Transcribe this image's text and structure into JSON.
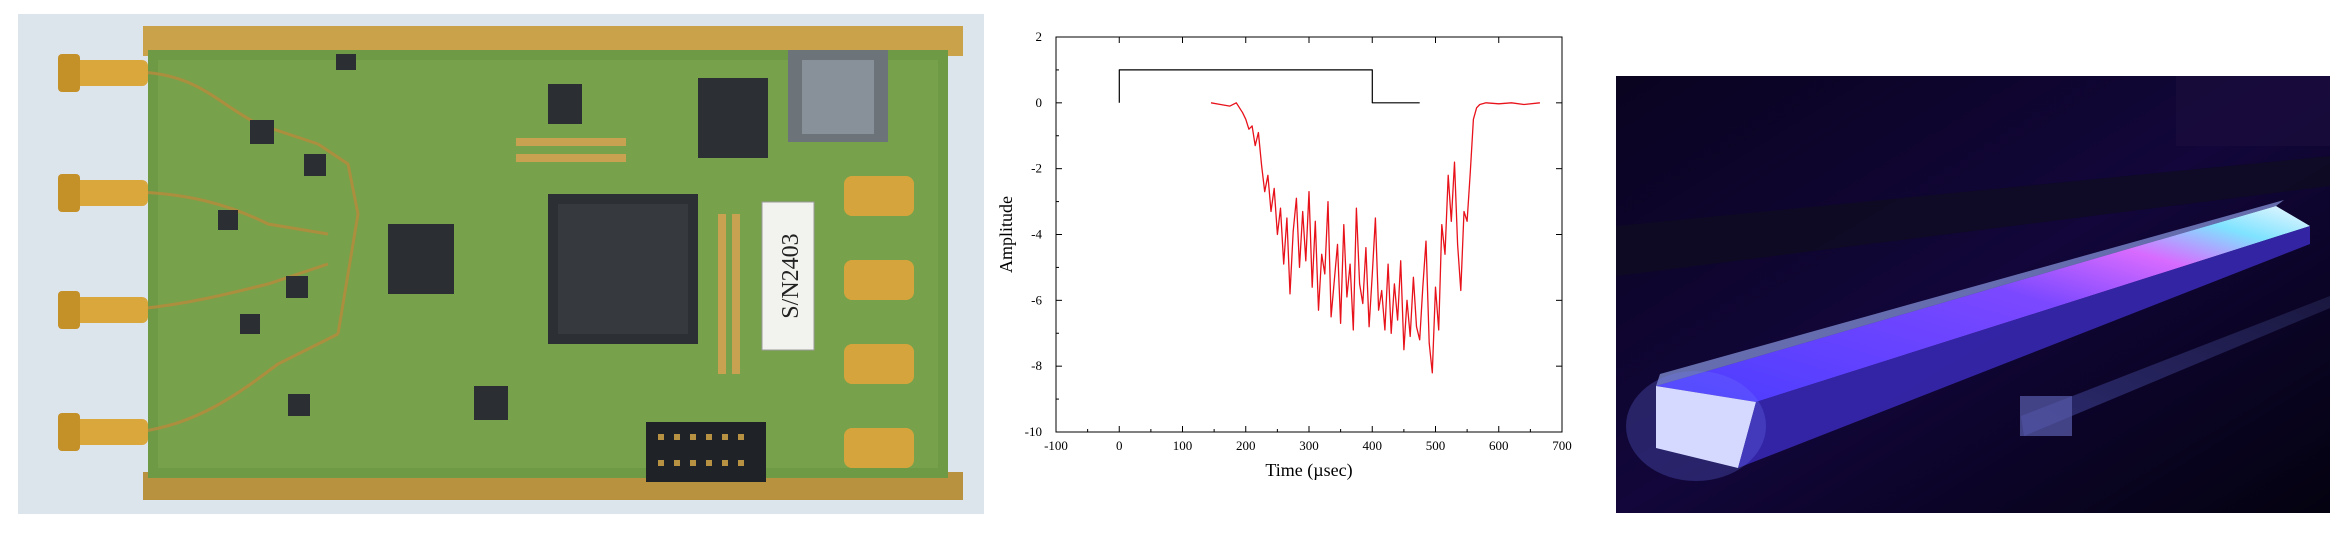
{
  "images": {
    "pcb_board": {
      "serial_label": "S/N2403"
    },
    "glowing_bar": {}
  },
  "chart_data": {
    "type": "line",
    "xlabel": "Time (µsec)",
    "ylabel": "Amplitude",
    "xlim": [
      -100,
      700
    ],
    "ylim": [
      -10,
      2
    ],
    "x_ticks": [
      "-100",
      "0",
      "100",
      "200",
      "300",
      "400",
      "500",
      "600",
      "700"
    ],
    "y_ticks": [
      "2",
      "0",
      "-2",
      "-4",
      "-6",
      "-8",
      "-10"
    ],
    "grid": false,
    "legend": "none",
    "series": [
      {
        "color": "#000000",
        "x": [
          0,
          0,
          1,
          400,
          400,
          475
        ],
        "y": [
          0,
          1,
          1,
          1,
          0,
          0
        ]
      },
      {
        "color": "#e8121b",
        "x": [
          145,
          160,
          175,
          185,
          195,
          200,
          205,
          210,
          215,
          220,
          225,
          230,
          235,
          240,
          245,
          250,
          255,
          260,
          265,
          270,
          275,
          280,
          285,
          290,
          295,
          300,
          305,
          310,
          315,
          320,
          325,
          330,
          335,
          340,
          345,
          350,
          355,
          360,
          365,
          370,
          375,
          380,
          385,
          390,
          395,
          400,
          405,
          410,
          415,
          420,
          425,
          430,
          435,
          440,
          445,
          450,
          455,
          460,
          465,
          470,
          475,
          480,
          485,
          490,
          495,
          500,
          505,
          510,
          515,
          520,
          525,
          530,
          535,
          540,
          545,
          550,
          555,
          560,
          565,
          570,
          580,
          600,
          620,
          640,
          665
        ],
        "y": [
          0,
          -0.05,
          -0.1,
          0,
          -0.3,
          -0.5,
          -0.8,
          -0.7,
          -1.3,
          -0.9,
          -1.9,
          -2.7,
          -2.2,
          -3.3,
          -2.6,
          -4.0,
          -3.2,
          -4.9,
          -3.5,
          -5.8,
          -3.9,
          -2.9,
          -5.0,
          -3.3,
          -4.8,
          -2.7,
          -5.6,
          -3.6,
          -6.3,
          -4.6,
          -5.2,
          -3.0,
          -6.5,
          -5.4,
          -4.3,
          -6.7,
          -3.7,
          -5.9,
          -4.9,
          -6.9,
          -3.2,
          -5.5,
          -6.1,
          -4.4,
          -6.8,
          -5.2,
          -3.5,
          -6.3,
          -5.7,
          -6.9,
          -4.9,
          -7.0,
          -5.5,
          -6.6,
          -4.8,
          -7.5,
          -6.0,
          -7.1,
          -5.3,
          -6.8,
          -7.2,
          -5.6,
          -4.2,
          -7.3,
          -8.2,
          -5.6,
          -6.9,
          -3.7,
          -4.6,
          -2.2,
          -3.6,
          -1.8,
          -4.3,
          -5.7,
          -3.3,
          -3.6,
          -2.1,
          -0.5,
          -0.15,
          -0.05,
          0,
          -0.03,
          0,
          -0.05,
          0
        ]
      }
    ]
  }
}
